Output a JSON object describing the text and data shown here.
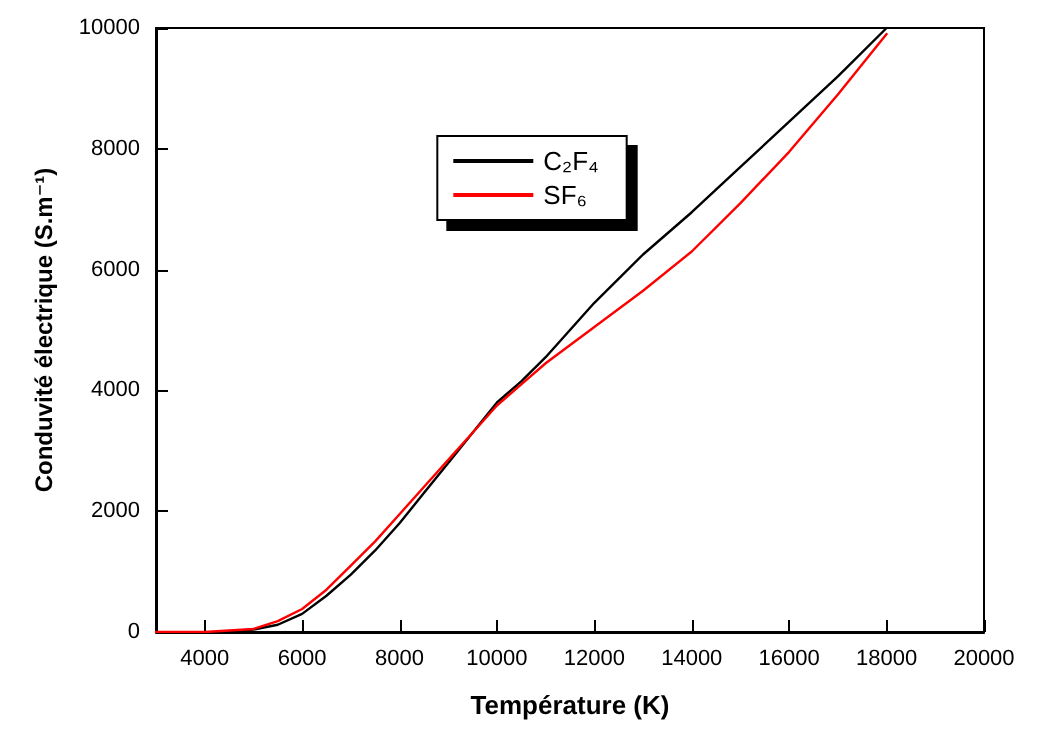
{
  "chart_data": {
    "type": "line",
    "xlabel": "Température (K)",
    "ylabel": "Conduvité électrique (S.m⁻¹)",
    "xlim": [
      3000,
      20000
    ],
    "xticks": [
      4000,
      6000,
      8000,
      10000,
      12000,
      14000,
      16000,
      18000,
      20000
    ],
    "ylim": [
      0,
      10000
    ],
    "yticks": [
      0,
      2000,
      4000,
      6000,
      8000,
      10000
    ],
    "grid": false,
    "legend": "top",
    "marker": "none",
    "line_style": "solid",
    "series": [
      {
        "name": "C₂F₄",
        "color": "#000000",
        "x": [
          4300,
          5000,
          5500,
          6000,
          6500,
          7000,
          7500,
          8000,
          8500,
          9000,
          9500,
          10000,
          10500,
          11000,
          12000,
          13000,
          14000,
          15000,
          16000,
          17000,
          18000
        ],
        "values": [
          0,
          40,
          120,
          300,
          600,
          950,
          1350,
          1800,
          2300,
          2800,
          3300,
          3800,
          4150,
          4550,
          5450,
          6250,
          6950,
          7700,
          8450,
          9200,
          10000
        ]
      },
      {
        "name": "SF₆",
        "color": "#ff0000",
        "x": [
          3000,
          4000,
          5000,
          5500,
          6000,
          6500,
          7000,
          7500,
          8000,
          8500,
          9000,
          9500,
          10000,
          10500,
          11000,
          12000,
          13000,
          14000,
          15000,
          16000,
          17000,
          18000
        ],
        "values": [
          0,
          0,
          50,
          180,
          380,
          700,
          1100,
          1500,
          1950,
          2400,
          2850,
          3300,
          3750,
          4100,
          4450,
          5050,
          5650,
          6300,
          7100,
          7950,
          8900,
          9900
        ]
      }
    ]
  }
}
